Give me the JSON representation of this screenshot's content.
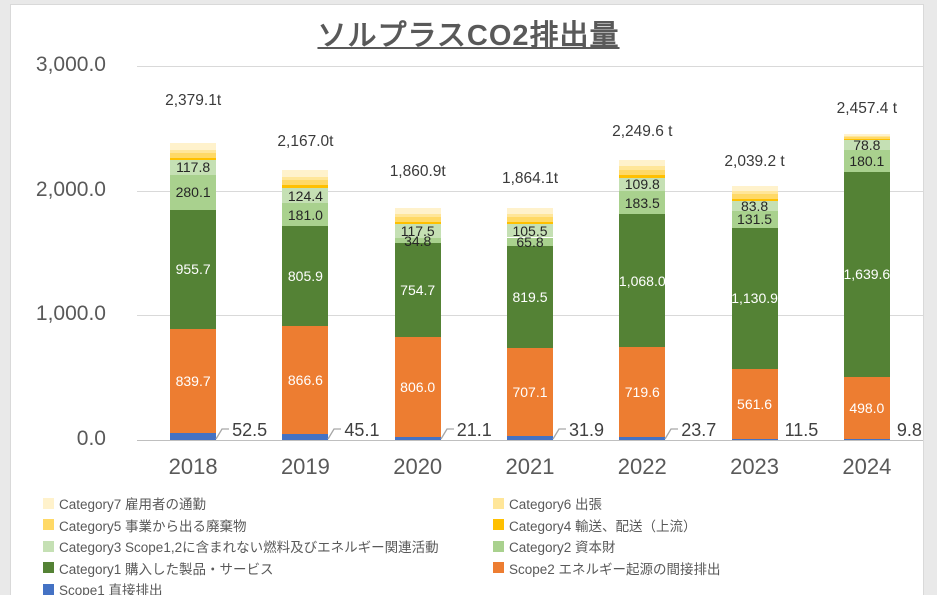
{
  "title": {
    "text": "ソルプラスCO2排出量"
  },
  "y_axis": {
    "ticks": [
      {
        "label": "3,000.0",
        "value": 3000
      },
      {
        "label": "2,000.0",
        "value": 2000
      },
      {
        "label": "1,000.0",
        "value": 1000
      },
      {
        "label": "0.0",
        "value": 0
      }
    ],
    "max": 3000,
    "min": 0
  },
  "x_axis": {
    "labels": [
      "2018",
      "2019",
      "2020",
      "2021",
      "2022",
      "2023",
      "2024"
    ]
  },
  "chart_data": {
    "type": "bar",
    "stacked": true,
    "title": "ソルプラスCO2排出量",
    "categories": [
      "2018",
      "2019",
      "2020",
      "2021",
      "2022",
      "2023",
      "2024"
    ],
    "ylim": [
      0,
      3000
    ],
    "grid": true,
    "legend_position": "bottom",
    "total_labels": [
      "2,379.1t",
      "2,167.0t",
      "1,860.9t",
      "1,864.1t",
      "2,249.6 t",
      "2,039.2 t",
      "2,457.4 t"
    ],
    "total_values": [
      2379.1,
      2167.0,
      1860.9,
      1864.1,
      2249.6,
      2039.2,
      2457.4
    ],
    "series": [
      {
        "name": "Scope1 直接排出",
        "color": "#4472C4",
        "values": [
          52.5,
          45.1,
          21.1,
          31.9,
          23.7,
          11.5,
          9.8
        ],
        "data_labels": [
          "52.5",
          "45.1",
          "21.1",
          "31.9",
          "23.7",
          "11.5",
          "9.8"
        ],
        "label_placement": "callout",
        "leader_lines": [
          true,
          true,
          true,
          true,
          true,
          false,
          false
        ],
        "label_color": "#404040"
      },
      {
        "name": "Scope2 エネルギー起源の間接排出",
        "color": "#ED7D31",
        "values": [
          839.7,
          866.6,
          806.0,
          707.1,
          719.6,
          561.6,
          498.0
        ],
        "data_labels": [
          "839.7",
          "866.6",
          "806.0",
          "707.1",
          "719.6",
          "561.6",
          "498.0"
        ],
        "label_placement": "inside",
        "label_color": "#ffffff"
      },
      {
        "name": "Category1 購入した製品・サービス",
        "color": "#548235",
        "values": [
          955.7,
          805.9,
          754.7,
          819.5,
          1068.0,
          1130.9,
          1639.6
        ],
        "data_labels": [
          "955.7",
          "805.9",
          "754.7",
          "819.5",
          "1,068.0",
          "1,130.9",
          "1,639.6"
        ],
        "label_placement": "inside",
        "label_color": "#ffffff"
      },
      {
        "name": "Category2 資本財",
        "color": "#A9D18E",
        "values": [
          280.1,
          181.0,
          34.8,
          65.8,
          183.5,
          131.5,
          180.1
        ],
        "data_labels": [
          "280.1",
          "181.0",
          "34.8",
          "65.8",
          "183.5",
          "131.5",
          "180.1"
        ],
        "label_placement": "inside",
        "label_color": "#262626"
      },
      {
        "name": "Category3 Scope1,2に含まれない燃料及びエネルギー関連活動",
        "color": "#C5E0B4",
        "values": [
          117.8,
          124.4,
          117.5,
          105.5,
          109.8,
          83.8,
          78.8
        ],
        "data_labels": [
          "117.8",
          "124.4",
          "117.5",
          "105.5",
          "109.8",
          "83.8",
          "78.8"
        ],
        "label_placement": "inside",
        "label_color": "#262626"
      },
      {
        "name": "Category4 輸送、配送（上流）",
        "color": "#FFC000",
        "values": [
          16,
          19,
          17,
          18,
          20,
          17,
          10
        ],
        "estimated": true
      },
      {
        "name": "Category5 事業から出る廃棄物",
        "color": "#FFD966",
        "values": [
          40,
          45,
          40,
          42,
          45,
          38,
          14
        ],
        "estimated": true
      },
      {
        "name": "Category6 出張",
        "color": "#FFE699",
        "values": [
          22,
          25,
          20,
          22,
          25,
          20,
          12
        ],
        "estimated": true
      },
      {
        "name": "Category7 雇用者の通勤",
        "color": "#FFF2CC",
        "values": [
          55,
          55,
          50,
          52,
          55,
          45,
          15
        ],
        "estimated": true
      }
    ]
  },
  "legend": {
    "columns": [
      [
        {
          "label": "Category7 雇用者の通勤",
          "color": "#FFF2CC"
        },
        {
          "label": "Category5 事業から出る廃棄物",
          "color": "#FFD966"
        },
        {
          "label": "Category3 Scope1,2に含まれない燃料及びエネルギー関連活動",
          "color": "#C5E0B4"
        },
        {
          "label": "Category1 購入した製品・サービス",
          "color": "#548235"
        },
        {
          "label": "Scope1 直接排出",
          "color": "#4472C4"
        }
      ],
      [
        {
          "label": "Category6 出張",
          "color": "#FFE699"
        },
        {
          "label": "Category4 輸送、配送（上流）",
          "color": "#FFC000"
        },
        {
          "label": "Category2 資本財",
          "color": "#A9D18E"
        },
        {
          "label": "Scope2 エネルギー起源の間接排出",
          "color": "#ED7D31"
        }
      ]
    ]
  },
  "colors": {
    "grid": "#d9d9d9",
    "axis_line": "#bfbfbf",
    "axis_text": "#595959",
    "title_text": "#595959",
    "leader_line": "#a6a6a6"
  }
}
